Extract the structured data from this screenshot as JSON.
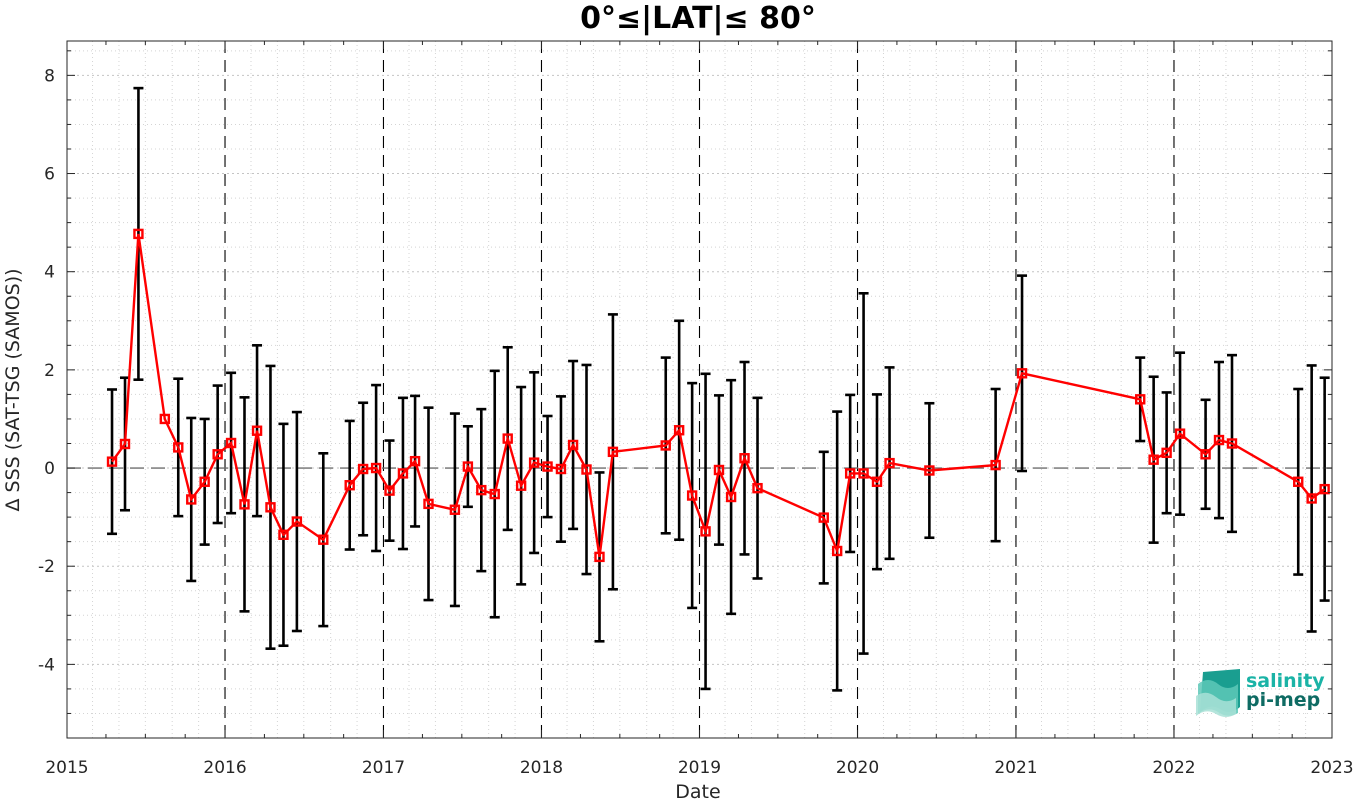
{
  "chart_data": {
    "type": "line",
    "title": "0°≤|LAT|≤ 80°",
    "xlabel": "Date",
    "ylabel": "Δ SSS (SAT-TSG (SAMOS))",
    "xlim": [
      "2015-01-01",
      "2023-01-01"
    ],
    "ylim": [
      -5.5,
      8.7
    ],
    "x_ticks": [
      "2015",
      "2016",
      "2017",
      "2018",
      "2019",
      "2020",
      "2021",
      "2022",
      "2023"
    ],
    "y_ticks": [
      -4,
      -2,
      0,
      2,
      4,
      6,
      8
    ],
    "grid": true,
    "reference_line": 0,
    "series": [
      {
        "color": "#ff0000",
        "points": [
          {
            "x": "2015-04-15",
            "y": 0.13,
            "err": 1.47
          },
          {
            "x": "2015-05-15",
            "y": 0.49,
            "err": 1.35
          },
          {
            "x": "2015-06-15",
            "y": 4.77,
            "err": 2.97
          },
          {
            "x": "2015-08-15",
            "y": 1.0,
            "err": 0.0
          },
          {
            "x": "2015-09-15",
            "y": 0.42,
            "err": 1.4
          },
          {
            "x": "2015-10-15",
            "y": -0.64,
            "err": 1.66
          },
          {
            "x": "2015-11-15",
            "y": -0.28,
            "err": 1.28
          },
          {
            "x": "2015-12-15",
            "y": 0.28,
            "err": 1.4
          },
          {
            "x": "2016-01-15",
            "y": 0.51,
            "err": 1.43
          },
          {
            "x": "2016-02-15",
            "y": -0.74,
            "err": 2.18
          },
          {
            "x": "2016-03-15",
            "y": 0.76,
            "err": 1.74
          },
          {
            "x": "2016-04-15",
            "y": -0.8,
            "err": 2.88
          },
          {
            "x": "2016-05-15",
            "y": -1.36,
            "err": 2.26
          },
          {
            "x": "2016-06-15",
            "y": -1.09,
            "err": 2.23
          },
          {
            "x": "2016-08-15",
            "y": -1.46,
            "err": 1.76
          },
          {
            "x": "2016-10-15",
            "y": -0.35,
            "err": 1.31
          },
          {
            "x": "2016-11-15",
            "y": -0.02,
            "err": 1.35
          },
          {
            "x": "2016-12-15",
            "y": 0.0,
            "err": 1.69
          },
          {
            "x": "2017-01-15",
            "y": -0.46,
            "err": 1.02
          },
          {
            "x": "2017-02-15",
            "y": -0.11,
            "err": 1.54
          },
          {
            "x": "2017-03-15",
            "y": 0.14,
            "err": 1.33
          },
          {
            "x": "2017-04-15",
            "y": -0.73,
            "err": 1.96
          },
          {
            "x": "2017-06-15",
            "y": -0.85,
            "err": 1.96
          },
          {
            "x": "2017-07-15",
            "y": 0.03,
            "err": 0.82
          },
          {
            "x": "2017-08-15",
            "y": -0.45,
            "err": 1.65
          },
          {
            "x": "2017-09-15",
            "y": -0.53,
            "err": 2.51
          },
          {
            "x": "2017-10-15",
            "y": 0.6,
            "err": 1.86
          },
          {
            "x": "2017-11-15",
            "y": -0.36,
            "err": 2.01
          },
          {
            "x": "2017-12-15",
            "y": 0.11,
            "err": 1.84
          },
          {
            "x": "2018-01-15",
            "y": 0.03,
            "err": 1.03
          },
          {
            "x": "2018-02-15",
            "y": -0.02,
            "err": 1.48
          },
          {
            "x": "2018-03-15",
            "y": 0.47,
            "err": 1.71
          },
          {
            "x": "2018-04-15",
            "y": -0.03,
            "err": 2.13
          },
          {
            "x": "2018-05-15",
            "y": -1.81,
            "err": 1.72
          },
          {
            "x": "2018-06-15",
            "y": 0.33,
            "err": 2.8
          },
          {
            "x": "2018-10-15",
            "y": 0.46,
            "err": 1.79
          },
          {
            "x": "2018-11-15",
            "y": 0.77,
            "err": 2.23
          },
          {
            "x": "2018-12-15",
            "y": -0.56,
            "err": 2.29
          },
          {
            "x": "2019-01-15",
            "y": -1.29,
            "err": 3.21
          },
          {
            "x": "2019-02-15",
            "y": -0.04,
            "err": 1.52
          },
          {
            "x": "2019-03-15",
            "y": -0.59,
            "err": 2.38
          },
          {
            "x": "2019-04-15",
            "y": 0.2,
            "err": 1.96
          },
          {
            "x": "2019-05-15",
            "y": -0.41,
            "err": 1.84
          },
          {
            "x": "2019-10-15",
            "y": -1.01,
            "err": 1.34
          },
          {
            "x": "2019-11-15",
            "y": -1.69,
            "err": 2.84
          },
          {
            "x": "2019-12-15",
            "y": -0.11,
            "err": 1.6
          },
          {
            "x": "2020-01-15",
            "y": -0.11,
            "err": 3.67
          },
          {
            "x": "2020-02-15",
            "y": -0.28,
            "err": 1.78
          },
          {
            "x": "2020-03-15",
            "y": 0.1,
            "err": 1.95
          },
          {
            "x": "2020-06-15",
            "y": -0.05,
            "err": 1.37
          },
          {
            "x": "2020-11-15",
            "y": 0.06,
            "err": 1.55
          },
          {
            "x": "2021-01-15",
            "y": 1.93,
            "err": 1.99
          },
          {
            "x": "2021-10-15",
            "y": 1.4,
            "err": 0.85
          },
          {
            "x": "2021-11-15",
            "y": 0.17,
            "err": 1.69
          },
          {
            "x": "2021-12-15",
            "y": 0.31,
            "err": 1.23
          },
          {
            "x": "2022-01-15",
            "y": 0.7,
            "err": 1.65
          },
          {
            "x": "2022-03-15",
            "y": 0.28,
            "err": 1.11
          },
          {
            "x": "2022-04-15",
            "y": 0.57,
            "err": 1.59
          },
          {
            "x": "2022-05-15",
            "y": 0.5,
            "err": 1.8
          },
          {
            "x": "2022-10-15",
            "y": -0.28,
            "err": 1.89
          },
          {
            "x": "2022-11-15",
            "y": -0.62,
            "err": 2.71
          },
          {
            "x": "2022-12-15",
            "y": -0.43,
            "err": 2.27
          }
        ]
      }
    ]
  },
  "logo": {
    "line1": "salinity",
    "line2": "pi-mep",
    "color1": "#1ab3a6",
    "color2": "#0e6b63"
  }
}
